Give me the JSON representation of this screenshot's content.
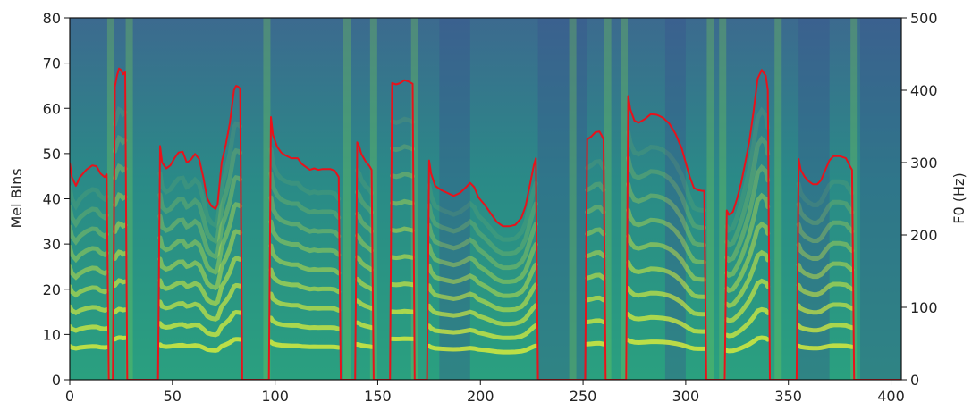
{
  "chart_data": {
    "type": "line",
    "title": "",
    "xlabel": "",
    "ylabel": "Mel Bins",
    "y2label": "F0 (Hz)",
    "xlim": [
      0,
      405
    ],
    "ylim": [
      0,
      80
    ],
    "y2lim": [
      0,
      500
    ],
    "x_ticks": [
      "0",
      "50",
      "100",
      "150",
      "200",
      "250",
      "300",
      "350",
      "400"
    ],
    "y_ticks": [
      "0",
      "10",
      "20",
      "30",
      "40",
      "50",
      "60",
      "70",
      "80"
    ],
    "y2_ticks": [
      "0",
      "100",
      "200",
      "300",
      "400",
      "500"
    ],
    "background": "mel-spectrogram heatmap (viridis colormap)",
    "grid": false,
    "legend": "none",
    "colors": {
      "line": "#e8121b",
      "spectrogram_low": "#3b5a98",
      "spectrogram_high": "#e3f13c"
    },
    "series": [
      {
        "name": "",
        "axis": "y2",
        "points": [
          [
            0,
            300
          ],
          [
            1,
            280
          ],
          [
            3,
            268
          ],
          [
            5,
            280
          ],
          [
            8,
            290
          ],
          [
            11,
            296
          ],
          [
            13,
            295
          ],
          [
            15,
            285
          ],
          [
            17,
            280
          ],
          [
            18,
            284
          ],
          [
            19,
            0
          ],
          [
            20,
            0
          ],
          [
            21,
            0
          ],
          [
            22,
            405
          ],
          [
            23,
            420
          ],
          [
            24,
            430
          ],
          [
            25,
            428
          ],
          [
            26,
            422
          ],
          [
            27,
            425
          ],
          [
            28,
            0
          ],
          [
            32,
            0
          ],
          [
            37,
            0
          ],
          [
            43,
            0
          ],
          [
            44,
            323
          ],
          [
            45,
            300
          ],
          [
            47,
            292
          ],
          [
            49,
            296
          ],
          [
            51,
            306
          ],
          [
            53,
            314
          ],
          [
            55,
            315
          ],
          [
            57,
            300
          ],
          [
            59,
            304
          ],
          [
            61,
            312
          ],
          [
            63,
            305
          ],
          [
            65,
            280
          ],
          [
            67,
            250
          ],
          [
            69,
            240
          ],
          [
            71,
            236
          ],
          [
            72,
            242
          ],
          [
            74,
            300
          ],
          [
            76,
            325
          ],
          [
            78,
            355
          ],
          [
            80,
            400
          ],
          [
            81,
            406
          ],
          [
            82,
            405
          ],
          [
            83,
            402
          ],
          [
            84,
            0
          ],
          [
            86,
            0
          ],
          [
            90,
            0
          ],
          [
            94,
            0
          ],
          [
            97,
            0
          ],
          [
            98,
            363
          ],
          [
            99,
            338
          ],
          [
            101,
            322
          ],
          [
            103,
            314
          ],
          [
            105,
            310
          ],
          [
            108,
            306
          ],
          [
            111,
            306
          ],
          [
            113,
            298
          ],
          [
            115,
            294
          ],
          [
            117,
            290
          ],
          [
            119,
            292
          ],
          [
            121,
            290
          ],
          [
            123,
            291
          ],
          [
            125,
            291
          ],
          [
            127,
            291
          ],
          [
            129,
            289
          ],
          [
            131,
            280
          ],
          [
            132,
            0
          ],
          [
            135,
            0
          ],
          [
            139,
            0
          ],
          [
            140,
            328
          ],
          [
            141,
            322
          ],
          [
            142,
            312
          ],
          [
            144,
            302
          ],
          [
            146,
            295
          ],
          [
            147,
            290
          ],
          [
            148,
            0
          ],
          [
            150,
            0
          ],
          [
            153,
            0
          ],
          [
            156,
            0
          ],
          [
            157,
            410
          ],
          [
            159,
            408
          ],
          [
            161,
            410
          ],
          [
            163,
            414
          ],
          [
            165,
            412
          ],
          [
            167,
            409
          ],
          [
            168,
            0
          ],
          [
            171,
            0
          ],
          [
            174,
            0
          ],
          [
            175,
            303
          ],
          [
            176,
            285
          ],
          [
            178,
            268
          ],
          [
            181,
            262
          ],
          [
            184,
            258
          ],
          [
            187,
            254
          ],
          [
            190,
            258
          ],
          [
            193,
            266
          ],
          [
            195,
            272
          ],
          [
            197,
            266
          ],
          [
            199,
            252
          ],
          [
            202,
            242
          ],
          [
            205,
            230
          ],
          [
            208,
            218
          ],
          [
            211,
            212
          ],
          [
            214,
            212
          ],
          [
            217,
            214
          ],
          [
            220,
            224
          ],
          [
            222,
            240
          ],
          [
            224,
            268
          ],
          [
            226,
            296
          ],
          [
            227,
            306
          ],
          [
            228,
            0
          ],
          [
            233,
            0
          ],
          [
            240,
            0
          ],
          [
            246,
            0
          ],
          [
            251,
            0
          ],
          [
            252,
            332
          ],
          [
            254,
            336
          ],
          [
            256,
            342
          ],
          [
            258,
            343
          ],
          [
            259,
            338
          ],
          [
            260,
            332
          ],
          [
            261,
            0
          ],
          [
            265,
            0
          ],
          [
            271,
            0
          ],
          [
            272,
            392
          ],
          [
            273,
            374
          ],
          [
            275,
            358
          ],
          [
            277,
            355
          ],
          [
            280,
            360
          ],
          [
            283,
            367
          ],
          [
            286,
            366
          ],
          [
            289,
            362
          ],
          [
            292,
            354
          ],
          [
            295,
            340
          ],
          [
            298,
            320
          ],
          [
            300,
            300
          ],
          [
            302,
            280
          ],
          [
            304,
            265
          ],
          [
            306,
            262
          ],
          [
            308,
            261
          ],
          [
            309,
            261
          ],
          [
            310,
            0
          ],
          [
            315,
            0
          ],
          [
            319,
            0
          ],
          [
            320,
            234
          ],
          [
            321,
            228
          ],
          [
            323,
            232
          ],
          [
            325,
            250
          ],
          [
            327,
            272
          ],
          [
            329,
            300
          ],
          [
            331,
            330
          ],
          [
            333,
            370
          ],
          [
            335,
            416
          ],
          [
            337,
            428
          ],
          [
            339,
            420
          ],
          [
            340,
            400
          ],
          [
            341,
            0
          ],
          [
            345,
            0
          ],
          [
            350,
            0
          ],
          [
            354,
            0
          ],
          [
            355,
            305
          ],
          [
            356,
            290
          ],
          [
            358,
            280
          ],
          [
            360,
            274
          ],
          [
            362,
            270
          ],
          [
            364,
            270
          ],
          [
            366,
            276
          ],
          [
            368,
            290
          ],
          [
            370,
            303
          ],
          [
            372,
            309
          ],
          [
            375,
            309
          ],
          [
            378,
            306
          ],
          [
            380,
            295
          ],
          [
            381,
            290
          ],
          [
            382,
            0
          ],
          [
            390,
            0
          ],
          [
            400,
            0
          ],
          [
            405,
            0
          ]
        ]
      }
    ]
  }
}
